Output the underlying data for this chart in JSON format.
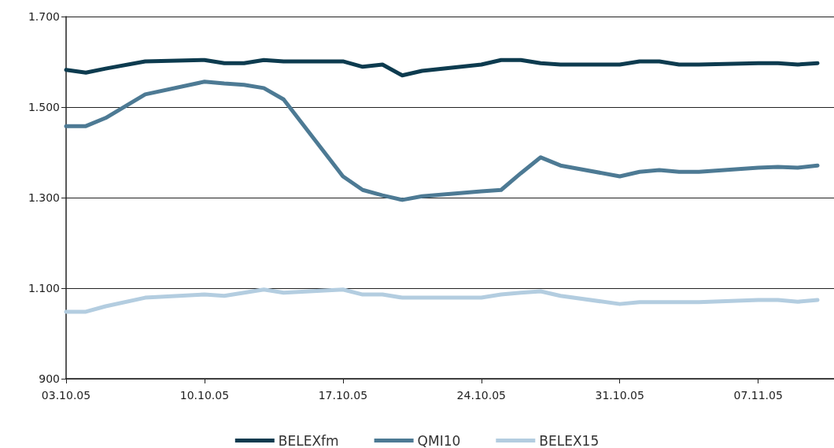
{
  "chart_data": {
    "type": "line",
    "x": [
      "--10-03",
      "--10-04",
      "--10-05",
      "--10-07",
      "--10-10",
      "--10-11",
      "--10-12",
      "--10-13",
      "--10-14",
      "--10-17",
      "--10-18",
      "--10-19",
      "--10-20",
      "--10-21",
      "--10-24",
      "--10-25",
      "--10-26",
      "--10-27",
      "--10-28",
      "--10-31",
      "--11-01",
      "--11-02",
      "--11-03",
      "--11-04",
      "--11-07",
      "--11-08",
      "--11-09",
      "--11-10"
    ],
    "series": [
      {
        "name": "BELEXfm",
        "color": "#0d3b4f",
        "values": [
          1582,
          1576,
          1585,
          1601,
          1604,
          1597,
          1597,
          1604,
          1601,
          1601,
          1589,
          1594,
          1570,
          1580,
          1594,
          1604,
          1604,
          1597,
          1594,
          1594,
          1601,
          1601,
          1594,
          1594,
          1597,
          1597,
          1594,
          1597
        ]
      },
      {
        "name": "QMI10",
        "color": "#4d7a94",
        "values": [
          1458,
          1458,
          1476,
          1528,
          1556,
          1552,
          1549,
          1542,
          1517,
          1347,
          1317,
          1305,
          1295,
          1303,
          1314,
          1317,
          1354,
          1389,
          1371,
          1347,
          1357,
          1361,
          1357,
          1357,
          1366,
          1368,
          1366,
          1371
        ]
      },
      {
        "name": "BELEX15",
        "color": "#b3cde0",
        "values": [
          1048,
          1048,
          1060,
          1079,
          1086,
          1083,
          1090,
          1097,
          1090,
          1097,
          1086,
          1086,
          1079,
          1079,
          1079,
          1086,
          1090,
          1093,
          1083,
          1065,
          1069,
          1069,
          1069,
          1069,
          1074,
          1074,
          1070,
          1074
        ]
      }
    ],
    "xlim": [
      "--10-03",
      "--11-10T20:00"
    ],
    "xticks": [
      {
        "value": "--10-03",
        "label": "03.10.05"
      },
      {
        "value": "--10-10",
        "label": "10.10.05"
      },
      {
        "value": "--10-17",
        "label": "17.10.05"
      },
      {
        "value": "--10-24",
        "label": "24.10.05"
      },
      {
        "value": "--10-31",
        "label": "31.10.05"
      },
      {
        "value": "--11-07",
        "label": "07.11.05"
      }
    ],
    "ylim": [
      900,
      1700
    ],
    "yticks": [
      {
        "value": 900,
        "label": "900"
      },
      {
        "value": 1100,
        "label": "1.100"
      },
      {
        "value": 1300,
        "label": "1.300"
      },
      {
        "value": 1500,
        "label": "1.500"
      },
      {
        "value": 1700,
        "label": "1.700"
      }
    ],
    "grid": "y",
    "legend": "bottom",
    "marker": "none",
    "line_style": "solid"
  }
}
